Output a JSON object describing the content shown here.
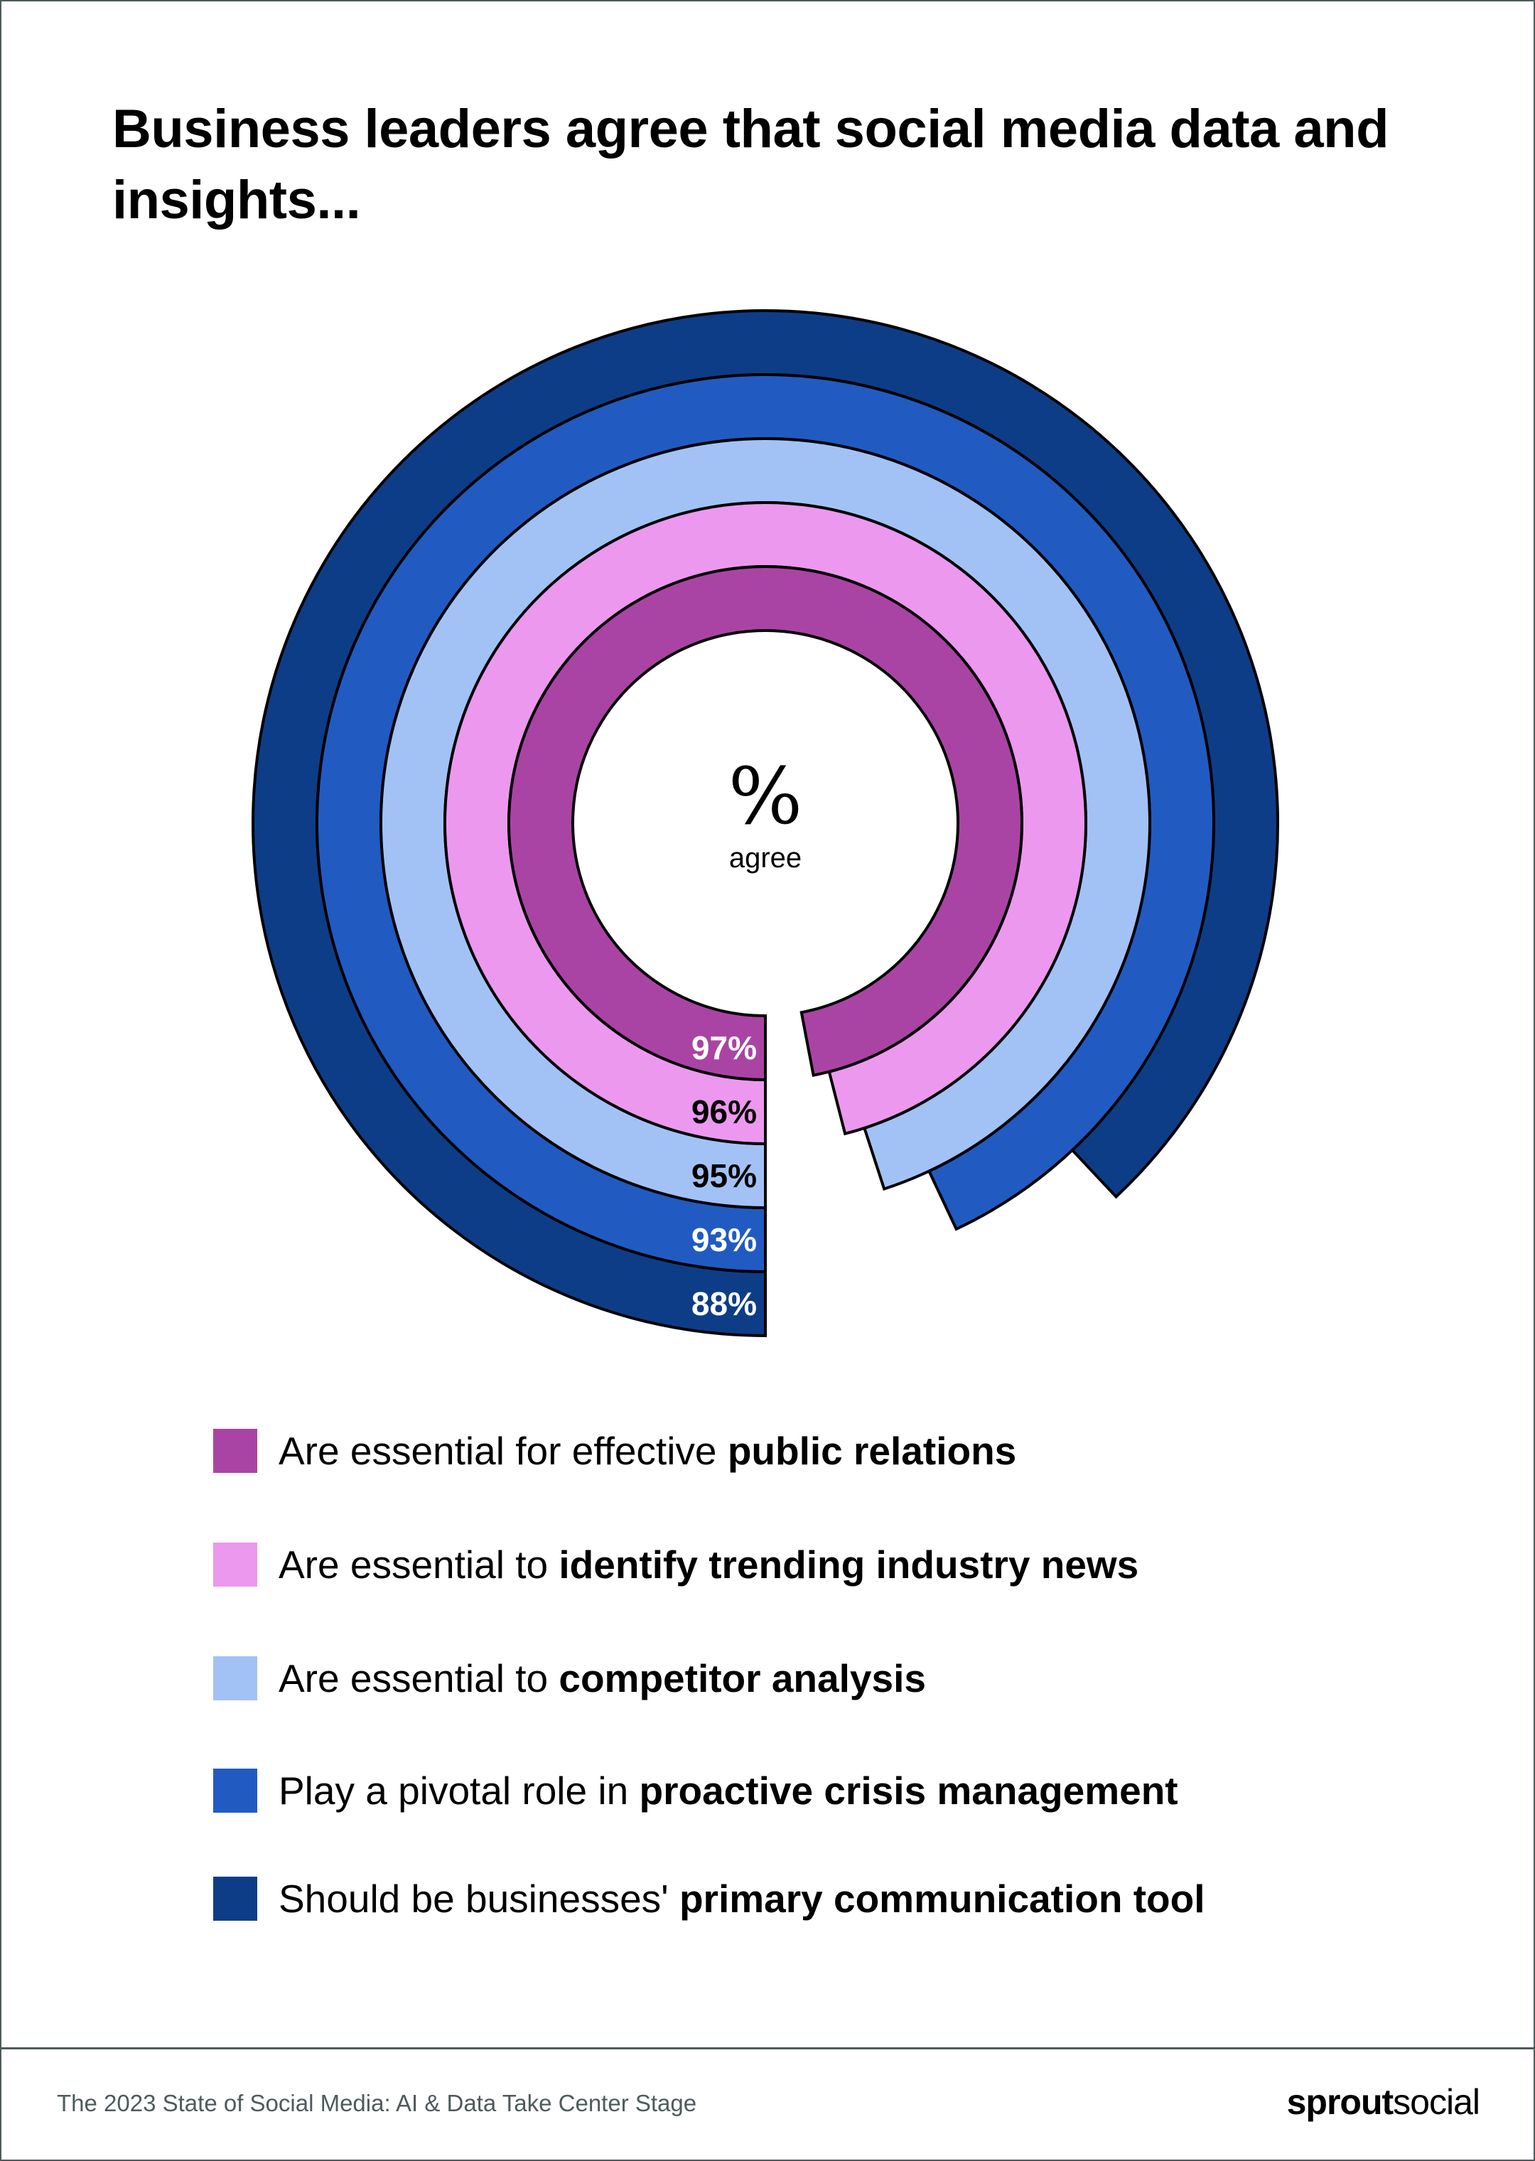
{
  "title": "Business leaders agree that social media data and insights...",
  "center": {
    "symbol": "%",
    "label": "agree"
  },
  "chart_data": {
    "type": "radial-bar",
    "title": "Business leaders agree that social media data and insights...",
    "unit": "% agree",
    "range": [
      0,
      100
    ],
    "series": [
      {
        "name": "Are essential for effective public relations",
        "value": 97,
        "label": "97%",
        "color": "#aa44a4",
        "label_color": "#ffffff"
      },
      {
        "name": "Are essential to identify trending industry news",
        "value": 96,
        "label": "96%",
        "color": "#ec98ee",
        "label_color": "#000000"
      },
      {
        "name": "Are essential to competitor analysis",
        "value": 95,
        "label": "95%",
        "color": "#a2c2f6",
        "label_color": "#000000"
      },
      {
        "name": "Play a pivotal role in proactive crisis management",
        "value": 93,
        "label": "93%",
        "color": "#215bc2",
        "label_color": "#ffffff"
      },
      {
        "name": "Should be businesses' primary communication tool",
        "value": 88,
        "label": "88%",
        "color": "#0e3d87",
        "label_color": "#ffffff"
      }
    ]
  },
  "legend": [
    {
      "prefix": "Are essential for effective ",
      "bold": "public relations",
      "color": "#aa44a4"
    },
    {
      "prefix": "Are essential to ",
      "bold": "identify trending industry news",
      "color": "#ec98ee"
    },
    {
      "prefix": "Are essential to ",
      "bold": "competitor analysis",
      "color": "#a2c2f6"
    },
    {
      "prefix": "Play a pivotal role in ",
      "bold": "proactive crisis management",
      "color": "#215bc2"
    },
    {
      "prefix": "Should be businesses' ",
      "bold": "primary communication tool",
      "color": "#0e3d87"
    }
  ],
  "footer": {
    "source": "The 2023 State of Social Media: AI & Data Take Center Stage",
    "logo_bold": "sprout",
    "logo_light": "social"
  }
}
